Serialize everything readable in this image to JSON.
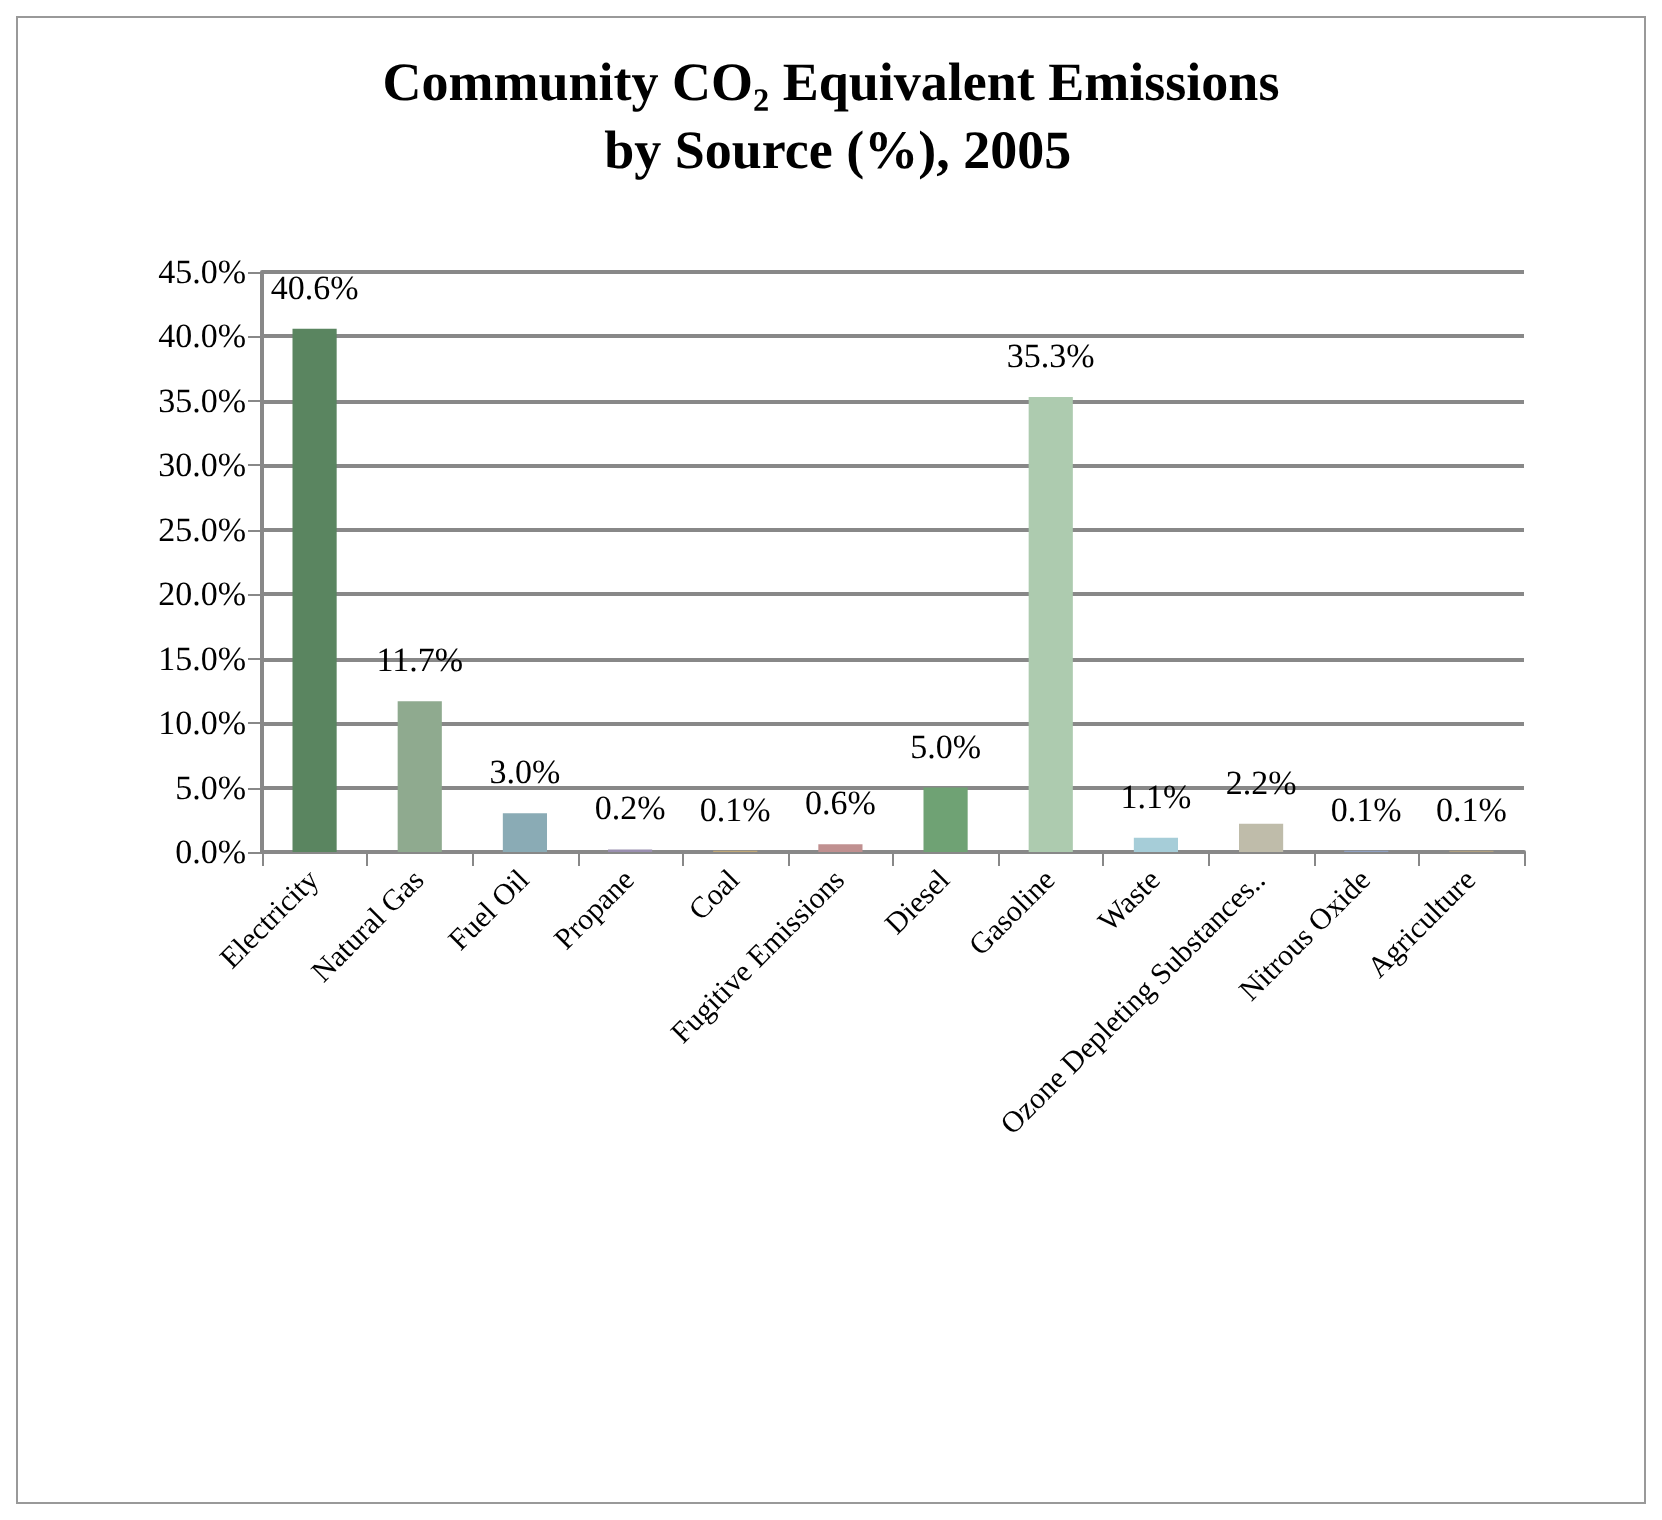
{
  "chart_data": {
    "type": "bar",
    "title": "Community CO₂ Equivalent Emissions by Source (%), 2005",
    "categories": [
      "Electricity",
      "Natural Gas",
      "Fuel Oil",
      "Propane",
      "Coal",
      "Fugitive Emissions",
      "Diesel",
      "Gasoline",
      "Waste",
      "Ozone Depleting Substances..",
      "Nitrous Oxide",
      "Agriculture"
    ],
    "values": [
      40.6,
      11.7,
      3.0,
      0.2,
      0.1,
      0.6,
      5.0,
      35.3,
      1.1,
      2.2,
      0.1,
      0.1
    ],
    "value_labels": [
      "40.6%",
      "11.7%",
      "3.0%",
      "0.2%",
      "0.1%",
      "0.6%",
      "5.0%",
      "35.3%",
      "1.1%",
      "2.2%",
      "0.1%",
      "0.1%"
    ],
    "colors": [
      "#5a8560",
      "#8faa8f",
      "#8aabb5",
      "#9a8fb0",
      "#c0a878",
      "#c09090",
      "#6fa274",
      "#adcbaf",
      "#a6cdd8",
      "#bfbcaa",
      "#8fa0c0",
      "#b0a080"
    ],
    "ylim": [
      0,
      45
    ],
    "yticks": [
      {
        "value": 0,
        "label": "0.0%"
      },
      {
        "value": 5,
        "label": "5.0%"
      },
      {
        "value": 10,
        "label": "10.0%"
      },
      {
        "value": 15,
        "label": "15.0%"
      },
      {
        "value": 20,
        "label": "20.0%"
      },
      {
        "value": 25,
        "label": "25.0%"
      },
      {
        "value": 30,
        "label": "30.0%"
      },
      {
        "value": 35,
        "label": "35.0%"
      },
      {
        "value": 40,
        "label": "40.0%"
      },
      {
        "value": 45,
        "label": "45.0%"
      }
    ],
    "grid": "y"
  }
}
